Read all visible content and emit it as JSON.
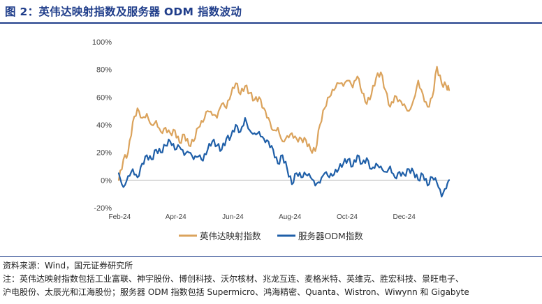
{
  "figure": {
    "title": "图 2：英伟达映射指数及服务器 ODM 指数波动"
  },
  "chart_data": {
    "type": "line",
    "ylim": [
      -20,
      100
    ],
    "y_ticks": [
      "100%",
      "80%",
      "60%",
      "40%",
      "20%",
      "0%",
      "-20%"
    ],
    "y_tick_values": [
      100,
      80,
      60,
      40,
      20,
      0,
      -20
    ],
    "x_ticks": [
      "Feb-24",
      "Apr-24",
      "Jun-24",
      "Aug-24",
      "Oct-24",
      "Dec-24"
    ],
    "x_tick_dates": [
      "2024-02-01",
      "2024-04-01",
      "2024-06-01",
      "2024-08-01",
      "2024-10-01",
      "2024-12-01"
    ],
    "grid": false,
    "legend_position": "bottom",
    "series": [
      {
        "name": "英伟达映射指数",
        "color": "#dba35c",
        "x": [
          "2024-01-31",
          "2024-02-05",
          "2024-02-10",
          "2024-02-15",
          "2024-02-20",
          "2024-02-25",
          "2024-03-01",
          "2024-03-06",
          "2024-03-11",
          "2024-03-16",
          "2024-03-21",
          "2024-03-26",
          "2024-03-31",
          "2024-04-05",
          "2024-04-10",
          "2024-04-15",
          "2024-04-20",
          "2024-04-25",
          "2024-04-30",
          "2024-05-05",
          "2024-05-10",
          "2024-05-15",
          "2024-05-20",
          "2024-05-25",
          "2024-05-30",
          "2024-06-04",
          "2024-06-09",
          "2024-06-14",
          "2024-06-19",
          "2024-06-24",
          "2024-06-29",
          "2024-07-04",
          "2024-07-09",
          "2024-07-14",
          "2024-07-19",
          "2024-07-24",
          "2024-07-29",
          "2024-08-03",
          "2024-08-08",
          "2024-08-13",
          "2024-08-18",
          "2024-08-23",
          "2024-08-28",
          "2024-09-02",
          "2024-09-07",
          "2024-09-12",
          "2024-09-17",
          "2024-09-22",
          "2024-09-27",
          "2024-10-02",
          "2024-10-07",
          "2024-10-12",
          "2024-10-17",
          "2024-10-22",
          "2024-10-27",
          "2024-11-01",
          "2024-11-06",
          "2024-11-11",
          "2024-11-16",
          "2024-11-21",
          "2024-11-26",
          "2024-12-01",
          "2024-12-06",
          "2024-12-11",
          "2024-12-16",
          "2024-12-21",
          "2024-12-26",
          "2024-12-31",
          "2025-01-05",
          "2025-01-10",
          "2025-01-15",
          "2025-01-18"
        ],
        "values": [
          0,
          15,
          20,
          42,
          52,
          45,
          48,
          40,
          43,
          35,
          38,
          34,
          36,
          27,
          33,
          25,
          28,
          38,
          42,
          50,
          47,
          45,
          55,
          52,
          62,
          70,
          62,
          68,
          63,
          58,
          60,
          52,
          45,
          36,
          38,
          28,
          32,
          34,
          30,
          30,
          29,
          22,
          21,
          40,
          52,
          60,
          65,
          70,
          68,
          72,
          67,
          75,
          63,
          55,
          62,
          74,
          78,
          65,
          53,
          61,
          58,
          55,
          50,
          58,
          72,
          62,
          53,
          60,
          82,
          70,
          68,
          65
        ]
      },
      {
        "name": "服务器ODM指数",
        "color": "#1f5fa8",
        "x": [
          "2024-01-31",
          "2024-02-05",
          "2024-02-10",
          "2024-02-15",
          "2024-02-20",
          "2024-02-25",
          "2024-03-01",
          "2024-03-06",
          "2024-03-11",
          "2024-03-16",
          "2024-03-21",
          "2024-03-26",
          "2024-03-31",
          "2024-04-05",
          "2024-04-10",
          "2024-04-15",
          "2024-04-20",
          "2024-04-25",
          "2024-04-30",
          "2024-05-05",
          "2024-05-10",
          "2024-05-15",
          "2024-05-20",
          "2024-05-25",
          "2024-05-30",
          "2024-06-04",
          "2024-06-09",
          "2024-06-14",
          "2024-06-19",
          "2024-06-24",
          "2024-06-29",
          "2024-07-04",
          "2024-07-09",
          "2024-07-14",
          "2024-07-19",
          "2024-07-24",
          "2024-07-29",
          "2024-08-03",
          "2024-08-08",
          "2024-08-13",
          "2024-08-18",
          "2024-08-23",
          "2024-08-28",
          "2024-09-02",
          "2024-09-07",
          "2024-09-12",
          "2024-09-17",
          "2024-09-22",
          "2024-09-27",
          "2024-10-02",
          "2024-10-07",
          "2024-10-12",
          "2024-10-17",
          "2024-10-22",
          "2024-10-27",
          "2024-11-01",
          "2024-11-06",
          "2024-11-11",
          "2024-11-16",
          "2024-11-21",
          "2024-11-26",
          "2024-12-01",
          "2024-12-06",
          "2024-12-11",
          "2024-12-16",
          "2024-12-21",
          "2024-12-26",
          "2024-12-31",
          "2025-01-05",
          "2025-01-10",
          "2025-01-15",
          "2025-01-18"
        ],
        "values": [
          5,
          -5,
          3,
          8,
          2,
          12,
          18,
          15,
          22,
          20,
          25,
          28,
          22,
          24,
          18,
          20,
          15,
          17,
          14,
          22,
          28,
          25,
          22,
          30,
          32,
          40,
          35,
          45,
          36,
          34,
          35,
          30,
          28,
          22,
          12,
          18,
          8,
          -3,
          5,
          2,
          4,
          2,
          -4,
          -2,
          5,
          2,
          4,
          8,
          12,
          15,
          10,
          18,
          12,
          16,
          8,
          12,
          10,
          6,
          10,
          2,
          6,
          4,
          8,
          6,
          0,
          4,
          -4,
          2,
          -2,
          -12,
          -6,
          0
        ]
      }
    ]
  },
  "notes": {
    "source": "资料来源：Wind，国元证券研究所",
    "note_line1": "注：英伟达映射指数包括工业富联、神宇股份、博创科技、沃尔核材、兆龙互连、麦格米特、英维克、胜宏科技、景旺电子、",
    "note_line2": "沪电股份、太辰光和江海股份；服务器 ODM 指数包括 Supermicro、鸿海精密、Quanta、Wistron、Wiwynn 和 Gigabyte"
  }
}
